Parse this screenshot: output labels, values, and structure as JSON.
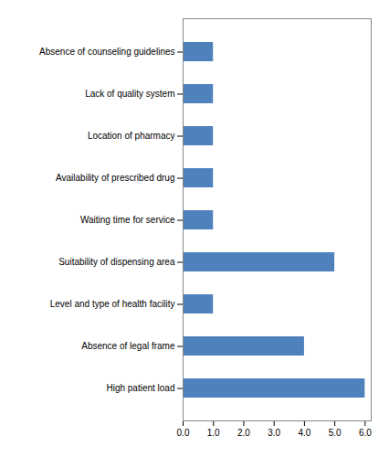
{
  "chart_data": {
    "type": "bar",
    "orientation": "horizontal",
    "categories": [
      "Absence of counseling guidelines",
      "Lack of quality system",
      "Location of pharmacy",
      "Availability of prescribed drug",
      "Waiting time for service",
      "Suitability of dispensing area",
      "Level and type of health facility",
      "Absence of legal frame",
      "High patient load"
    ],
    "values": [
      1,
      1,
      1,
      1,
      1,
      5,
      1,
      4,
      6
    ],
    "color": "#4f81bd",
    "xlim": [
      0,
      6.2
    ],
    "xticks": [
      0,
      1,
      2,
      3,
      4,
      5,
      6
    ],
    "grid": false
  }
}
